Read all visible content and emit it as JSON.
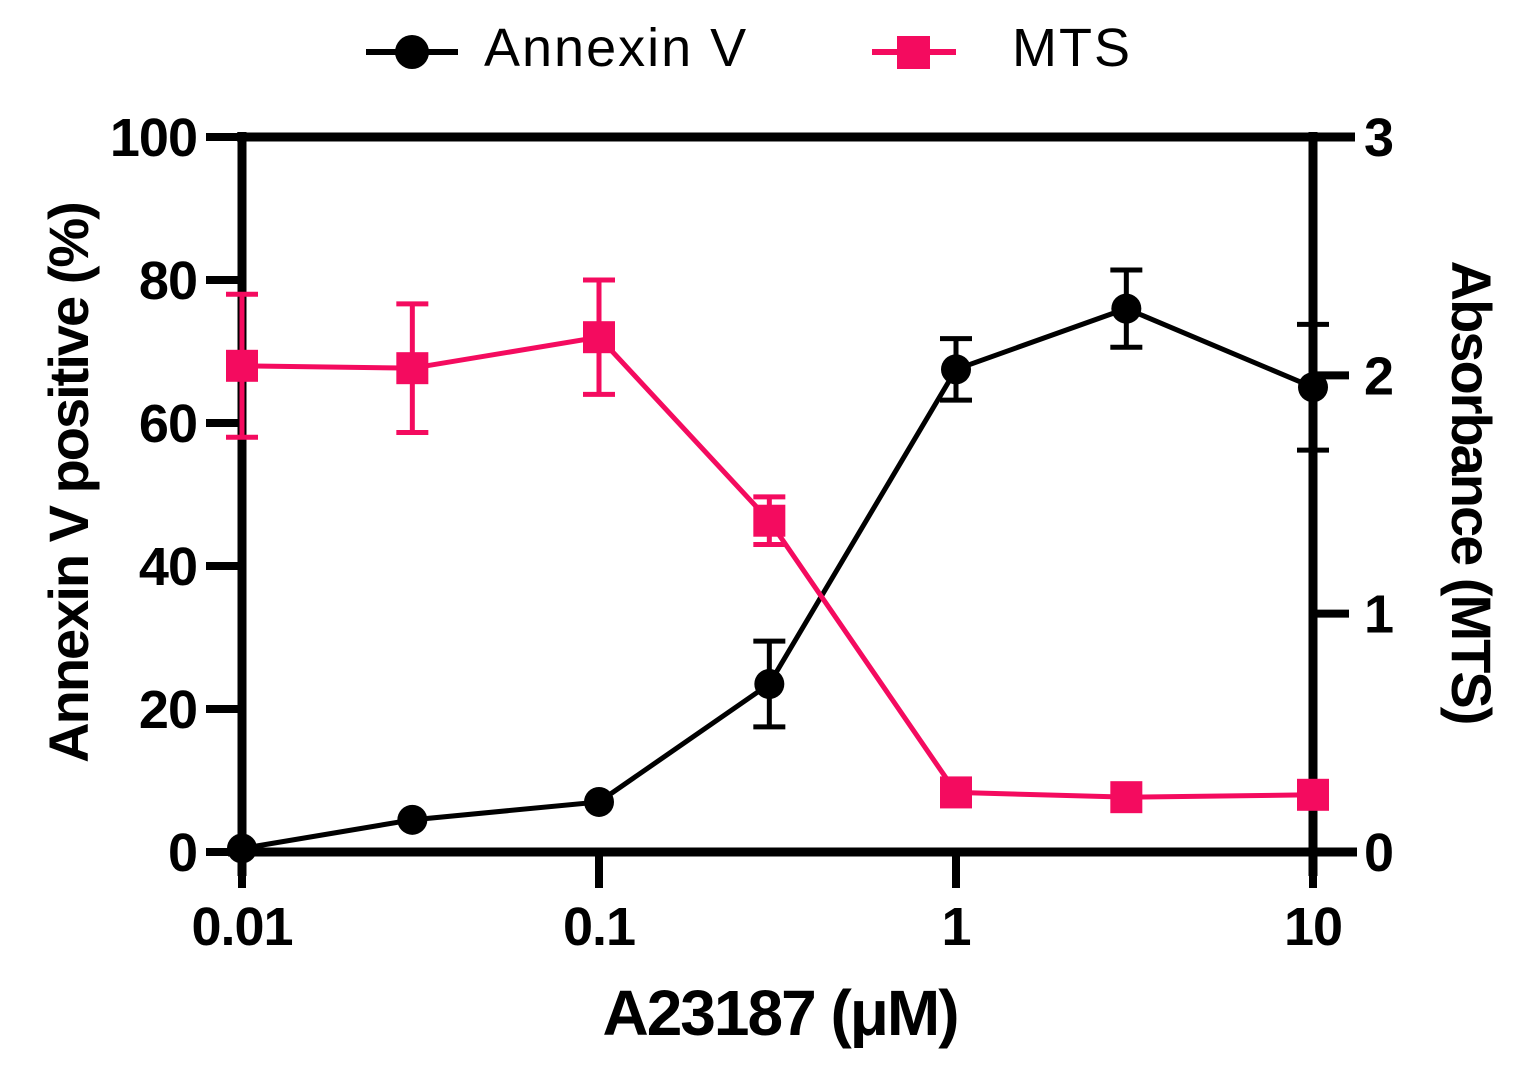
{
  "page": {
    "background": "#ffffff",
    "text_color": "#000000"
  },
  "chart_data": {
    "type": "line",
    "title": "",
    "grid": false,
    "legend_position": "top",
    "x": [
      0.01,
      0.03,
      0.1,
      0.3,
      1,
      3,
      10
    ],
    "x_axis": {
      "label": "A23187 (μM)",
      "scale": "log10",
      "range": [
        0.01,
        10
      ],
      "ticks": [
        0.01,
        0.1,
        1,
        10
      ],
      "tick_labels": [
        "0.01",
        "0.1",
        "1",
        "10"
      ]
    },
    "left_axis": {
      "label": "Annexin V positive (%)",
      "range": [
        0,
        100
      ],
      "ticks": [
        0,
        20,
        40,
        60,
        80,
        100
      ],
      "tick_labels": [
        "0",
        "20",
        "40",
        "60",
        "80",
        "100"
      ]
    },
    "right_axis": {
      "label": "Absorbance (MTS)",
      "range": [
        0,
        3
      ],
      "ticks": [
        0,
        1,
        2,
        3
      ],
      "tick_labels": [
        "0",
        "1",
        "2",
        "3"
      ]
    },
    "series": [
      {
        "name": "Annexin V",
        "axis": "left",
        "marker": "circle",
        "color": "#000000",
        "values": [
          0.5,
          4.5,
          7,
          23.5,
          67.5,
          76,
          65
        ],
        "errors": [
          0,
          0,
          0,
          6,
          4.3,
          5.4,
          8.8
        ]
      },
      {
        "name": "MTS",
        "axis": "right",
        "marker": "square",
        "color": "#F40B5F",
        "values": [
          2.04,
          2.03,
          2.16,
          1.39,
          0.25,
          0.23,
          0.24
        ],
        "errors": [
          0.3,
          0.27,
          0.24,
          0.1,
          0,
          0,
          0
        ]
      }
    ]
  }
}
